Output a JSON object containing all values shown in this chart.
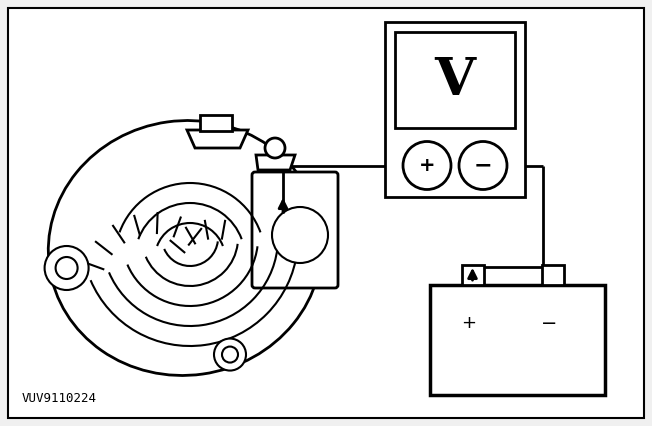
{
  "bg_color": "#f0f0f0",
  "white": "#ffffff",
  "black": "#000000",
  "label_text": "VUV9110224",
  "label_fontsize": 9,
  "fig_w": 6.52,
  "fig_h": 4.26,
  "dpi": 100
}
